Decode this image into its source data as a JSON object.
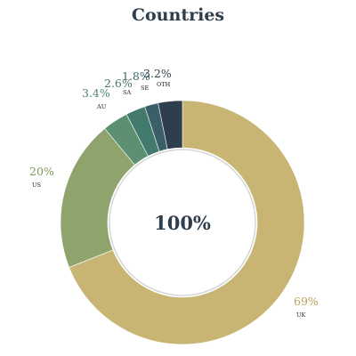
{
  "chart_data": {
    "type": "pie",
    "title": "Countries",
    "center_label": "100%",
    "categories": [
      "UK",
      "US",
      "AU",
      "SA",
      "SE",
      "OTH"
    ],
    "values": [
      69,
      20,
      3.4,
      2.6,
      1.8,
      3.2
    ],
    "value_labels": [
      "69%",
      "20%",
      "3.4%",
      "2.6%",
      "1.8%",
      "3.2%"
    ],
    "colors": [
      "#c8b574",
      "#8fa36d",
      "#5d9073",
      "#437a6e",
      "#3a5f68",
      "#2f3e4c"
    ],
    "label_colors": [
      "#b8a25a",
      "#7f9a5c",
      "#4e8a6a",
      "#447a6a",
      "#3f6670",
      "#34424e"
    ]
  }
}
